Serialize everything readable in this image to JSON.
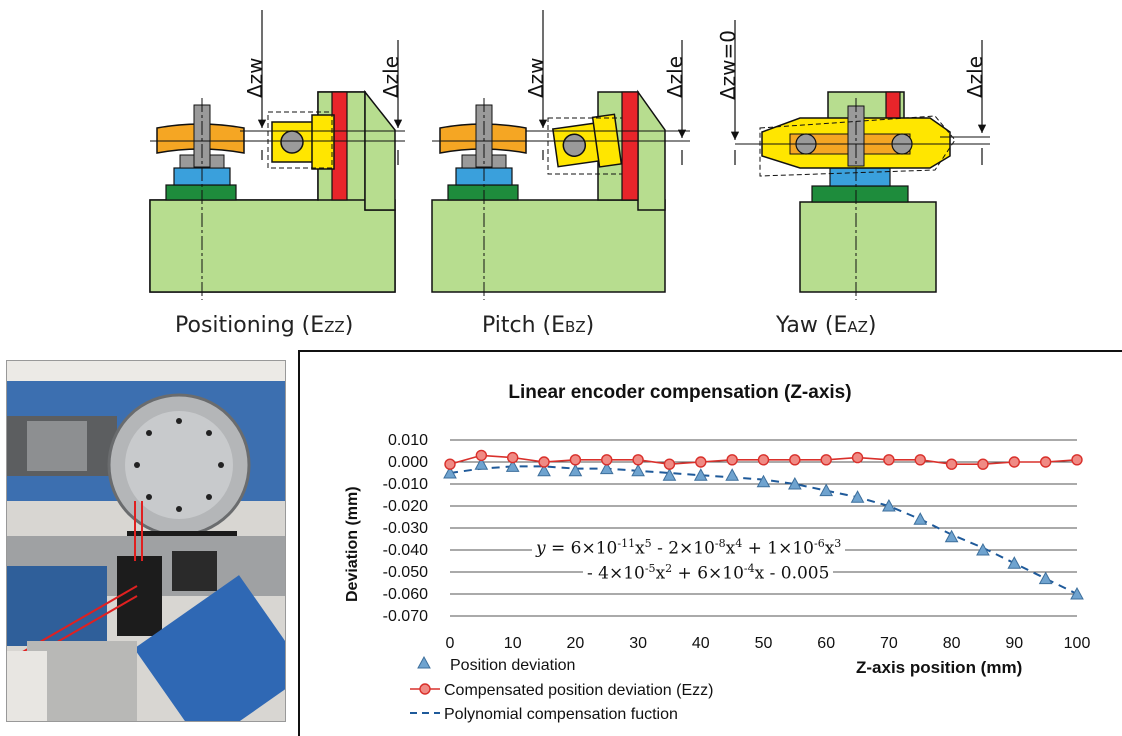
{
  "diagrams": [
    {
      "label_main": "Positioning (E",
      "label_sub": "ZZ",
      "label_end": ")",
      "dim_left": "Δzw",
      "dim_right": "Δzle"
    },
    {
      "label_main": "Pitch (E",
      "label_sub": "BZ",
      "label_end": ")",
      "dim_left": "Δzw",
      "dim_right": "Δzle"
    },
    {
      "label_main": "Yaw (E",
      "label_sub": "AZ",
      "label_end": ")",
      "dim_left": "Δzw=0",
      "dim_right": "Δzle"
    }
  ],
  "colors": {
    "machine_green": "#b7dd8f",
    "table_orange": "#f5a623",
    "clamp_blue": "#3aa0dc",
    "base_green": "#1e8c3c",
    "yellow": "#ffe600",
    "red": "#e8252a",
    "grey": "#9a9a9a",
    "series_position": "#6fa3cf",
    "series_compensated": "#d9302b",
    "series_poly": "#1f5a9a"
  },
  "chart_data": {
    "type": "line",
    "title": "Linear encoder compensation (Z-axis)",
    "xlabel": "Z-axis position (mm)",
    "ylabel": "Deviation (mm)",
    "xlim": [
      0,
      100
    ],
    "ylim": [
      -0.07,
      0.01
    ],
    "x_ticks": [
      "0",
      "10",
      "20",
      "30",
      "40",
      "50",
      "60",
      "70",
      "80",
      "90",
      "100"
    ],
    "y_ticks": [
      "0.010",
      "0.000",
      "-0.010",
      "-0.020",
      "-0.030",
      "-0.040",
      "-0.050",
      "-0.060",
      "-0.070"
    ],
    "grid": "horizontal",
    "x": [
      0,
      5,
      10,
      15,
      20,
      25,
      30,
      35,
      40,
      45,
      50,
      55,
      60,
      65,
      70,
      75,
      80,
      85,
      90,
      95,
      100
    ],
    "series": [
      {
        "name": "Position deviation",
        "marker": "triangle",
        "values": [
          -0.005,
          -0.001,
          -0.002,
          -0.004,
          -0.004,
          -0.003,
          -0.004,
          -0.006,
          -0.006,
          -0.006,
          -0.009,
          -0.01,
          -0.013,
          -0.016,
          -0.02,
          -0.026,
          -0.034,
          -0.04,
          -0.046,
          -0.053,
          -0.06
        ]
      },
      {
        "name": "Compensated position deviation (Ezz)",
        "marker": "circle",
        "values": [
          -0.001,
          0.003,
          0.002,
          0.0,
          0.001,
          0.001,
          0.001,
          -0.001,
          0.0,
          0.001,
          0.001,
          0.001,
          0.001,
          0.002,
          0.001,
          0.001,
          -0.001,
          -0.001,
          0.0,
          0.0,
          0.001
        ]
      },
      {
        "name": "Polynomial compensation fuction",
        "marker": "dashed",
        "values": [
          -0.005,
          -0.003,
          -0.002,
          -0.002,
          -0.003,
          -0.003,
          -0.004,
          -0.005,
          -0.006,
          -0.007,
          -0.008,
          -0.01,
          -0.013,
          -0.016,
          -0.02,
          -0.026,
          -0.033,
          -0.039,
          -0.046,
          -0.053,
          -0.06
        ]
      }
    ],
    "equation": {
      "line1": "y = 6×10-11x5 - 2×10-8x4 + 1×10-6x3",
      "line2": "- 4×10-5x2 + 6×10-4x - 0.005"
    }
  }
}
